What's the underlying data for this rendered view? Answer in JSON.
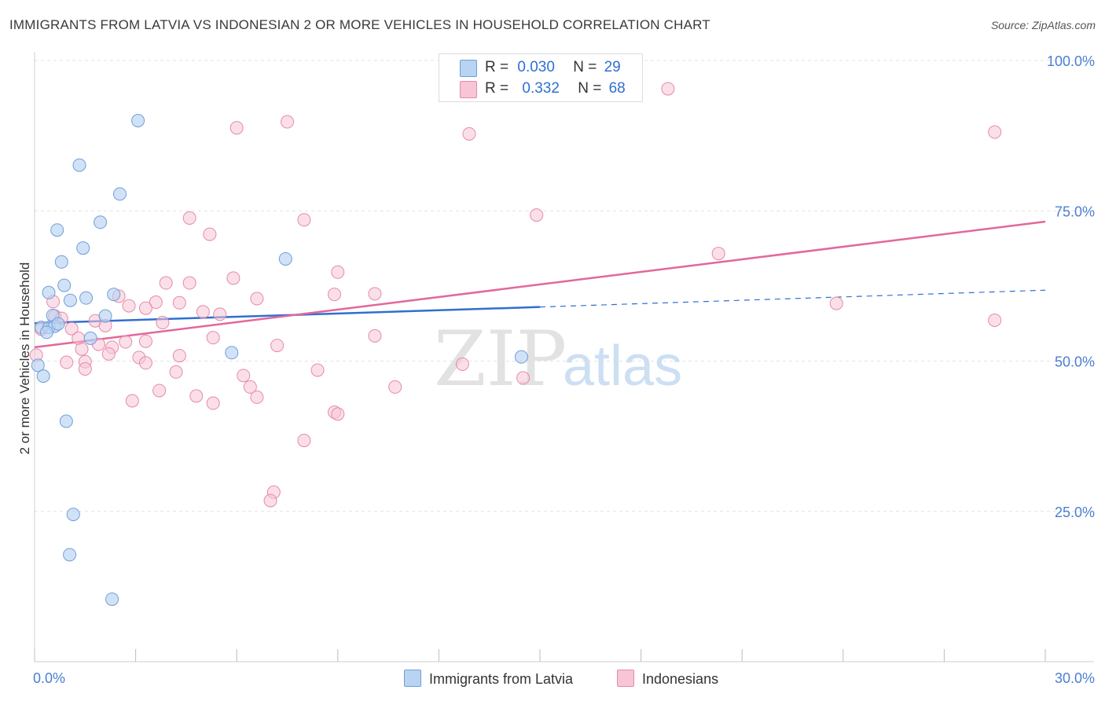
{
  "title": "IMMIGRANTS FROM LATVIA VS INDONESIAN 2 OR MORE VEHICLES IN HOUSEHOLD CORRELATION CHART",
  "source": "Source: ZipAtlas.com",
  "watermark": {
    "zip": "ZIP",
    "atlas": "atlas"
  },
  "legend": {
    "rows": [
      {
        "r_label": "R =",
        "r_value": "0.030",
        "n_label": "N =",
        "n_value": "29"
      },
      {
        "r_label": "R =",
        "r_value": "0.332",
        "n_label": "N =",
        "n_value": "68"
      }
    ]
  },
  "colors": {
    "blue_fill": "#b9d3f2",
    "blue_stroke": "#6f9fd8",
    "blue_line": "#2f6fd1",
    "pink_fill": "#f7c5d5",
    "pink_stroke": "#e58aaa",
    "pink_line": "#e3679a",
    "tick_text": "#4a7fd1",
    "grid": "#e3e3e3"
  },
  "chart_data": {
    "type": "scatter",
    "title": "IMMIGRANTS FROM LATVIA VS INDONESIAN 2 OR MORE VEHICLES IN HOUSEHOLD CORRELATION CHART",
    "xlabel": "",
    "ylabel": "2 or more Vehicles in Household",
    "xlim": [
      0,
      30
    ],
    "ylim": [
      0,
      100
    ],
    "x_tick_labels": [
      "0.0%",
      "30.0%"
    ],
    "y_ticks": [
      25,
      50,
      75,
      100
    ],
    "y_tick_labels": [
      "25.0%",
      "50.0%",
      "75.0%",
      "100.0%"
    ],
    "grid": true,
    "legend_position": "top-center",
    "series": [
      {
        "name": "Immigrants from Latvia",
        "r": 0.03,
        "n": 29,
        "trend": {
          "x0": 0,
          "y0": 56.3,
          "x1": 15,
          "y1": 59.0,
          "dashed_to_x": 30,
          "dashed_to_y": 61.8
        },
        "points": [
          [
            3.07,
            90.0
          ],
          [
            1.33,
            82.6
          ],
          [
            2.53,
            77.8
          ],
          [
            0.67,
            71.8
          ],
          [
            1.95,
            73.1
          ],
          [
            0.8,
            66.5
          ],
          [
            1.44,
            68.8
          ],
          [
            0.42,
            61.4
          ],
          [
            0.88,
            62.6
          ],
          [
            1.06,
            60.1
          ],
          [
            1.53,
            60.5
          ],
          [
            2.35,
            61.1
          ],
          [
            0.54,
            57.6
          ],
          [
            2.1,
            57.5
          ],
          [
            0.2,
            55.6
          ],
          [
            0.43,
            55.6
          ],
          [
            0.6,
            55.8
          ],
          [
            0.7,
            56.2
          ],
          [
            0.36,
            54.8
          ],
          [
            1.66,
            53.8
          ],
          [
            0.1,
            49.3
          ],
          [
            0.26,
            47.5
          ],
          [
            5.85,
            51.4
          ],
          [
            14.45,
            50.7
          ],
          [
            7.45,
            67.0
          ],
          [
            0.94,
            40.0
          ],
          [
            1.15,
            24.5
          ],
          [
            1.04,
            17.8
          ],
          [
            2.3,
            10.4
          ]
        ]
      },
      {
        "name": "Indonesians",
        "r": 0.332,
        "n": 68,
        "trend": {
          "x0": 0,
          "y0": 52.3,
          "x1": 30,
          "y1": 73.2
        },
        "points": [
          [
            18.8,
            95.3
          ],
          [
            7.5,
            89.8
          ],
          [
            6.0,
            88.8
          ],
          [
            12.9,
            87.8
          ],
          [
            28.5,
            88.1
          ],
          [
            4.6,
            73.8
          ],
          [
            8.0,
            73.5
          ],
          [
            14.9,
            74.3
          ],
          [
            5.2,
            71.1
          ],
          [
            20.3,
            67.9
          ],
          [
            9.0,
            64.8
          ],
          [
            3.9,
            63.0
          ],
          [
            4.6,
            63.0
          ],
          [
            5.9,
            63.8
          ],
          [
            8.9,
            61.1
          ],
          [
            10.1,
            61.2
          ],
          [
            2.5,
            60.8
          ],
          [
            6.6,
            60.4
          ],
          [
            0.55,
            59.9
          ],
          [
            3.6,
            59.8
          ],
          [
            4.3,
            59.7
          ],
          [
            2.8,
            59.2
          ],
          [
            3.3,
            58.8
          ],
          [
            5.0,
            58.2
          ],
          [
            5.5,
            57.8
          ],
          [
            0.6,
            57.5
          ],
          [
            0.8,
            57.1
          ],
          [
            1.8,
            56.7
          ],
          [
            3.8,
            56.4
          ],
          [
            2.1,
            55.9
          ],
          [
            1.1,
            55.4
          ],
          [
            0.2,
            55.3
          ],
          [
            1.3,
            53.8
          ],
          [
            1.9,
            52.8
          ],
          [
            2.3,
            52.3
          ],
          [
            2.7,
            53.2
          ],
          [
            3.3,
            53.3
          ],
          [
            5.3,
            53.9
          ],
          [
            7.2,
            52.6
          ],
          [
            10.1,
            54.2
          ],
          [
            23.8,
            59.6
          ],
          [
            28.5,
            56.8
          ],
          [
            1.4,
            52.0
          ],
          [
            2.2,
            51.2
          ],
          [
            4.3,
            50.9
          ],
          [
            3.1,
            50.6
          ],
          [
            3.3,
            49.7
          ],
          [
            1.5,
            49.9
          ],
          [
            0.95,
            49.8
          ],
          [
            12.7,
            49.5
          ],
          [
            8.4,
            48.5
          ],
          [
            4.2,
            48.2
          ],
          [
            6.2,
            47.6
          ],
          [
            14.5,
            47.2
          ],
          [
            6.4,
            45.7
          ],
          [
            10.7,
            45.7
          ],
          [
            3.7,
            45.1
          ],
          [
            4.8,
            44.2
          ],
          [
            6.6,
            44.0
          ],
          [
            2.9,
            43.4
          ],
          [
            5.3,
            43.0
          ],
          [
            8.9,
            41.5
          ],
          [
            9.0,
            41.2
          ],
          [
            8.0,
            36.8
          ],
          [
            7.1,
            28.2
          ],
          [
            7.0,
            26.8
          ],
          [
            0.05,
            51.0
          ],
          [
            1.5,
            48.7
          ]
        ]
      }
    ]
  }
}
